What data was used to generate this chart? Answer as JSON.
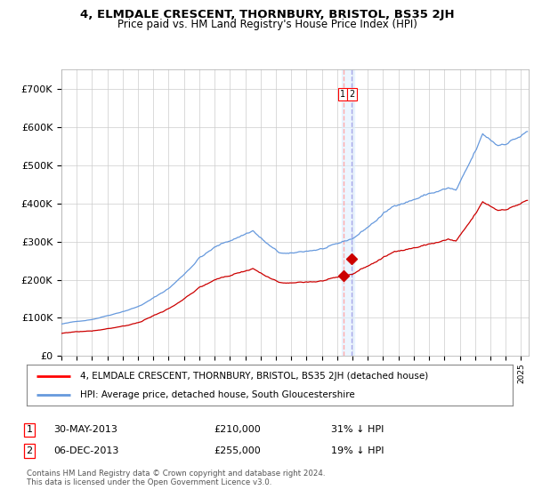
{
  "title": "4, ELMDALE CRESCENT, THORNBURY, BRISTOL, BS35 2JH",
  "subtitle": "Price paid vs. HM Land Registry's House Price Index (HPI)",
  "legend_line1": "4, ELMDALE CRESCENT, THORNBURY, BRISTOL, BS35 2JH (detached house)",
  "legend_line2": "HPI: Average price, detached house, South Gloucestershire",
  "transaction1_date": "30-MAY-2013",
  "transaction1_price": 210000,
  "transaction1_label": "31% ↓ HPI",
  "transaction2_date": "06-DEC-2013",
  "transaction2_price": 255000,
  "transaction2_label": "19% ↓ HPI",
  "transaction1_x": 2013.41,
  "transaction2_x": 2013.92,
  "hpi_color": "#6699DD",
  "price_color": "#CC0000",
  "marker_color": "#CC0000",
  "grid_color": "#CCCCCC",
  "bg_color": "#FFFFFF",
  "ylim": [
    0,
    750000
  ],
  "xlim_start": 1995.0,
  "xlim_end": 2025.5,
  "footer": "Contains HM Land Registry data © Crown copyright and database right 2024.\nThis data is licensed under the Open Government Licence v3.0."
}
